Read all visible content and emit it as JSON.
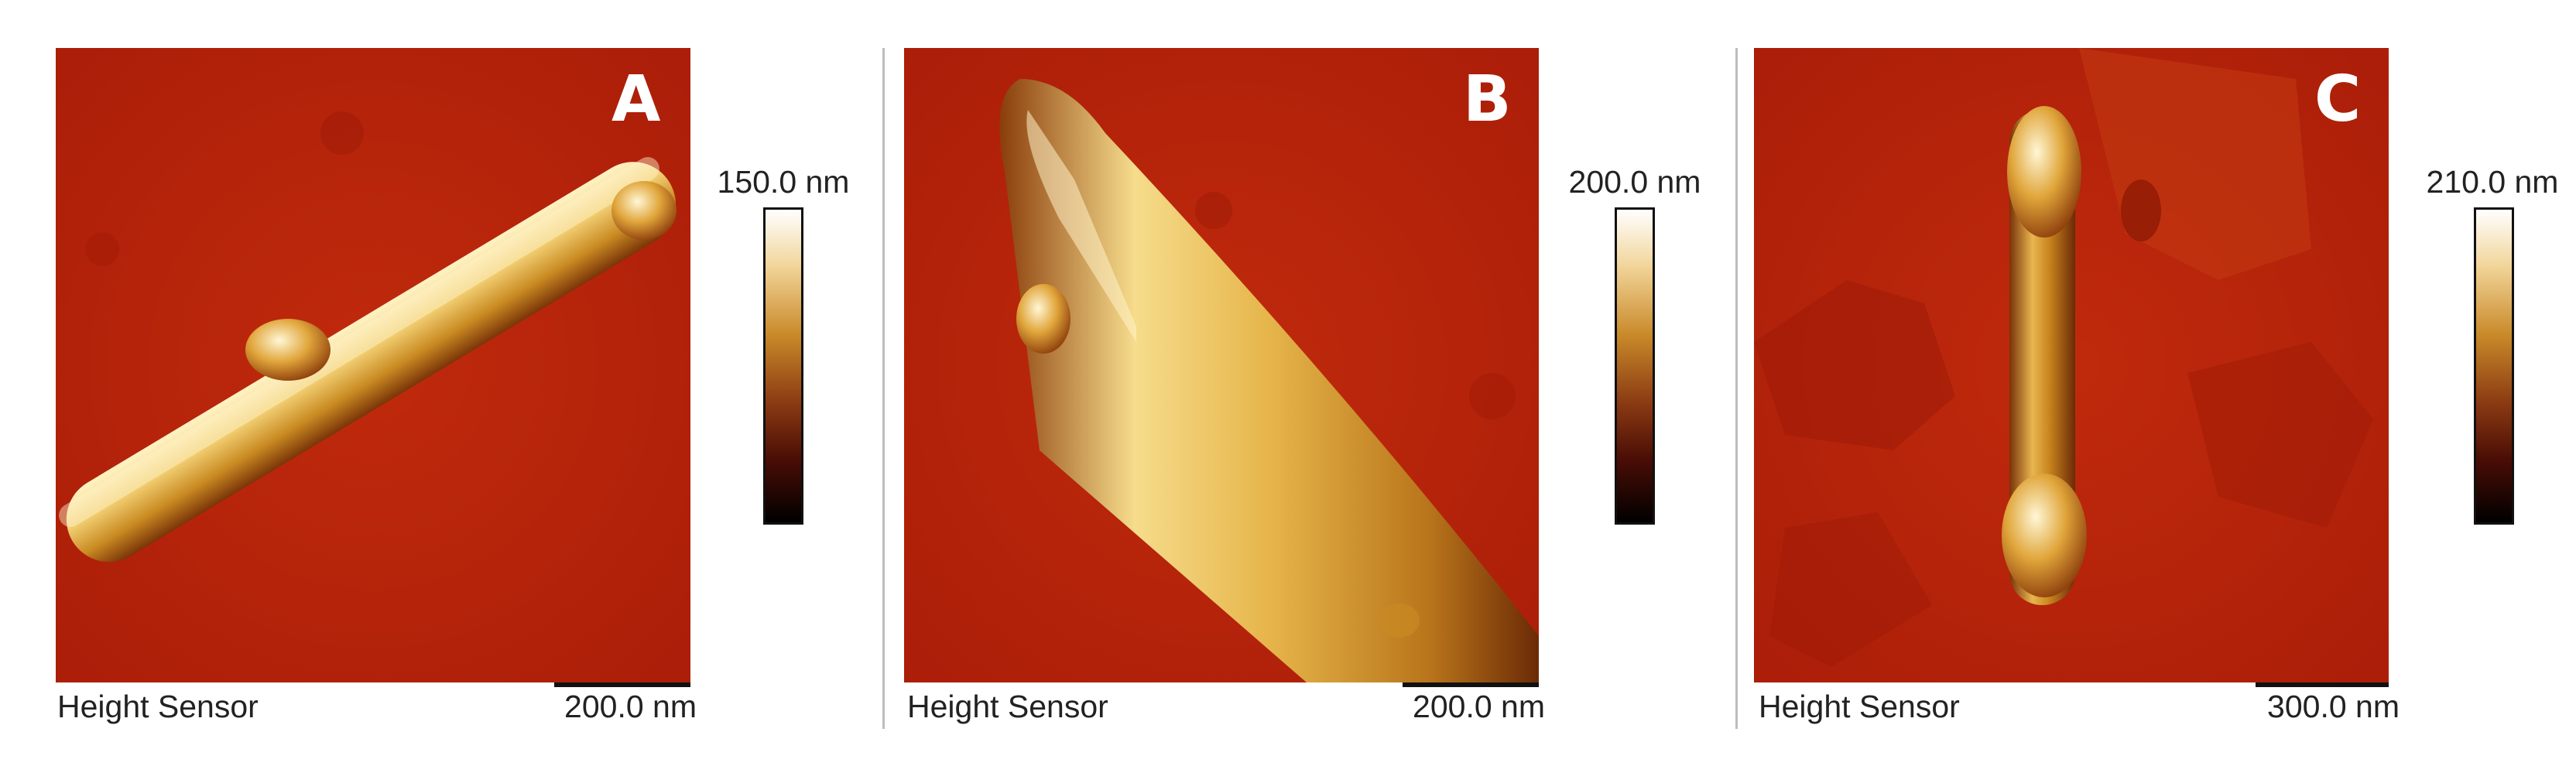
{
  "panels": [
    {
      "letter": "A",
      "sensor": "Height Sensor",
      "scale": "200.0 nm",
      "colorbar_max": "150.0 nm"
    },
    {
      "letter": "B",
      "sensor": "Height Sensor",
      "scale": "200.0 nm",
      "colorbar_max": "200.0 nm"
    },
    {
      "letter": "C",
      "sensor": "Height Sensor",
      "scale": "300.0 nm",
      "colorbar_max": "210.0 nm"
    }
  ],
  "colors": {
    "substrate": "#b3200a",
    "rod_highlight": "#fff1c2",
    "rod_mid": "#d49a2c",
    "rod_dark": "#7a3208"
  }
}
